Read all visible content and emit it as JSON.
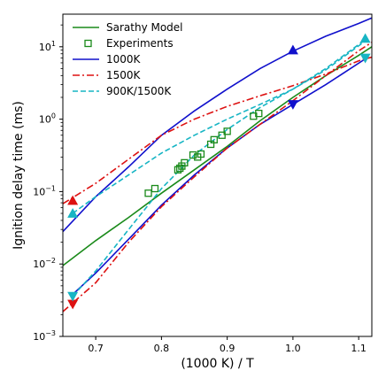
{
  "chart_data": {
    "type": "line",
    "xlabel": "(1000 K) / T",
    "ylabel": "Ignition delay time (ms)",
    "xlim": [
      0.65,
      1.12
    ],
    "ylim_log10": [
      -3,
      1.45
    ],
    "yscale": "log",
    "grid": false,
    "legend_placement": "top-left",
    "x_ticks": [
      {
        "value": 0.7,
        "label": "0.7"
      },
      {
        "value": 0.8,
        "label": "0.8"
      },
      {
        "value": 0.9,
        "label": "0.9"
      },
      {
        "value": 1.0,
        "label": "1.0"
      },
      {
        "value": 1.1,
        "label": "1.1"
      }
    ],
    "y_ticks": [
      {
        "exp": -3,
        "base": "10",
        "power": "−3"
      },
      {
        "exp": -2,
        "base": "10",
        "power": "−2"
      },
      {
        "exp": -1,
        "base": "10",
        "power": "−1"
      },
      {
        "exp": 0,
        "base": "10",
        "power": "0"
      },
      {
        "exp": 1,
        "base": "10",
        "power": "1"
      }
    ],
    "legend": [
      {
        "label": "Sarathy Model",
        "color": "#1a8a1a",
        "style": "solid",
        "marker": "none"
      },
      {
        "label": "Experiments",
        "color": "#1a8a1a",
        "style": "none",
        "marker": "square"
      },
      {
        "label": "1000K",
        "color": "#1010cc",
        "style": "solid",
        "marker": "none"
      },
      {
        "label": "1500K",
        "color": "#dd1111",
        "style": "dashdot",
        "marker": "none"
      },
      {
        "label": "900K/1500K",
        "color": "#17b5c4",
        "style": "dashed",
        "marker": "none"
      }
    ],
    "series": [
      {
        "color": "#1a8a1a",
        "style": "solid",
        "x": [
          0.65,
          0.7,
          0.75,
          0.8,
          0.85,
          0.9,
          0.95,
          1.0,
          1.05,
          1.1,
          1.12
        ],
        "y": [
          0.0095,
          0.021,
          0.044,
          0.095,
          0.2,
          0.42,
          0.95,
          2.0,
          4.0,
          7.6,
          10.0
        ]
      },
      {
        "color": "#1010cc",
        "style": "solid",
        "x": [
          0.65,
          0.7,
          0.75,
          0.8,
          0.85,
          0.9,
          0.95,
          1.0,
          1.05,
          1.1,
          1.12
        ],
        "y": [
          0.028,
          0.085,
          0.22,
          0.6,
          1.3,
          2.6,
          5.0,
          8.7,
          14.0,
          21.0,
          25.0
        ]
      },
      {
        "color": "#1010cc",
        "style": "solid",
        "x": [
          0.665,
          0.7,
          0.75,
          0.8,
          0.85,
          0.9,
          0.95,
          1.0,
          1.05,
          1.11
        ],
        "y": [
          0.0038,
          0.0075,
          0.022,
          0.065,
          0.17,
          0.4,
          0.85,
          1.6,
          3.0,
          6.8
        ]
      },
      {
        "color": "#dd1111",
        "style": "dashdot",
        "x": [
          0.65,
          0.7,
          0.75,
          0.8,
          0.85,
          0.9,
          0.95,
          1.0,
          1.05,
          1.1,
          1.12
        ],
        "y": [
          0.068,
          0.13,
          0.28,
          0.6,
          1.0,
          1.5,
          2.1,
          2.9,
          4.2,
          6.4,
          7.2
        ]
      },
      {
        "color": "#dd1111",
        "style": "dashdot",
        "x": [
          0.65,
          0.7,
          0.75,
          0.8,
          0.85,
          0.9,
          0.95,
          1.0,
          1.05,
          1.1,
          1.12
        ],
        "y": [
          0.0022,
          0.0055,
          0.02,
          0.062,
          0.16,
          0.4,
          0.85,
          1.8,
          4.0,
          8.8,
          11.5
        ]
      },
      {
        "color": "#17b5c4",
        "style": "dashed",
        "x": [
          0.665,
          0.7,
          0.75,
          0.8,
          0.85,
          0.9,
          0.95,
          1.0,
          1.05,
          1.11
        ],
        "y": [
          0.05,
          0.085,
          0.17,
          0.34,
          0.6,
          1.0,
          1.6,
          2.6,
          5.0,
          12.5
        ]
      },
      {
        "color": "#17b5c4",
        "style": "dashed",
        "x": [
          0.665,
          0.7,
          0.75,
          0.8,
          0.85,
          0.9,
          0.95,
          1.0,
          1.05,
          1.11
        ],
        "y": [
          0.0036,
          0.008,
          0.03,
          0.11,
          0.32,
          0.72,
          1.45,
          2.6,
          4.8,
          12.0
        ]
      }
    ],
    "experiments": {
      "color": "#1a8a1a",
      "x": [
        0.78,
        0.79,
        0.825,
        0.828,
        0.831,
        0.835,
        0.848,
        0.855,
        0.86,
        0.875,
        0.88,
        0.892,
        0.9,
        0.94,
        0.948
      ],
      "y": [
        0.095,
        0.11,
        0.2,
        0.21,
        0.225,
        0.25,
        0.32,
        0.3,
        0.33,
        0.45,
        0.52,
        0.6,
        0.68,
        1.1,
        1.2
      ]
    },
    "markers": [
      {
        "x": 1.0,
        "y": 9.0,
        "shape": "triangle-up",
        "color": "#1010cc"
      },
      {
        "x": 1.0,
        "y": 1.6,
        "shape": "triangle-down",
        "color": "#1010cc"
      },
      {
        "x": 0.665,
        "y": 0.075,
        "shape": "triangle-up",
        "color": "#dd1111"
      },
      {
        "x": 0.665,
        "y": 0.0028,
        "shape": "triangle-down",
        "color": "#dd1111"
      },
      {
        "x": 0.665,
        "y": 0.05,
        "shape": "triangle-up",
        "color": "#17b5c4"
      },
      {
        "x": 0.665,
        "y": 0.0036,
        "shape": "triangle-down",
        "color": "#17b5c4"
      },
      {
        "x": 1.11,
        "y": 13.0,
        "shape": "triangle-up",
        "color": "#17b5c4"
      },
      {
        "x": 1.11,
        "y": 7.0,
        "shape": "triangle-down",
        "color": "#17b5c4"
      }
    ]
  }
}
